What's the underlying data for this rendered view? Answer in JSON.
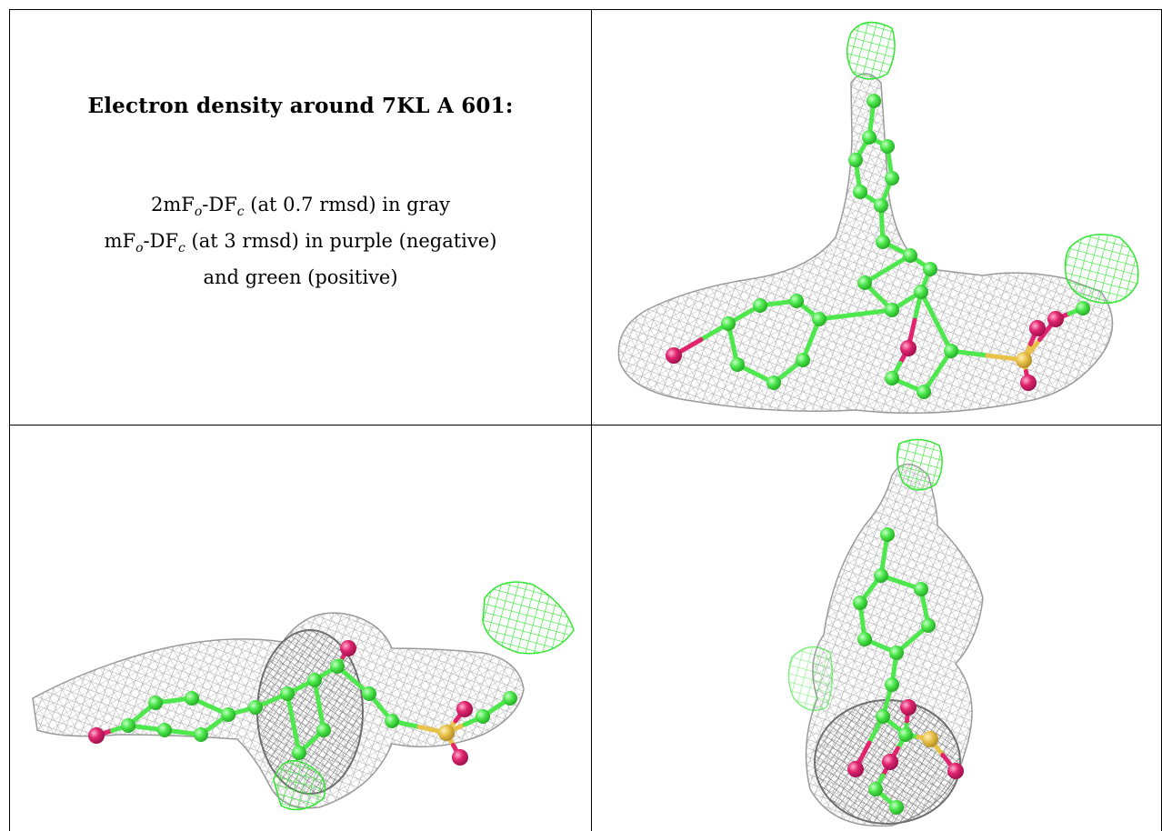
{
  "caption": {
    "title": "Electron density around 7KL A 601:",
    "legend_lines": [
      {
        "pre": "2mF",
        "sub1": "o",
        "mid": "-DF",
        "sub2": "c",
        "post": " (at 0.7 rmsd) in gray"
      },
      {
        "pre": "mF",
        "sub1": "o",
        "mid": "-DF",
        "sub2": "c",
        "post": " (at 3 rmsd) in purple (negative)"
      },
      {
        "text": "and green (positive)"
      }
    ]
  },
  "panels": [
    {
      "name": "top-view"
    },
    {
      "name": "side-view"
    },
    {
      "name": "end-view"
    }
  ],
  "colors": {
    "mesh_gray": "#a8a8a8",
    "mesh_green": "#33e633",
    "carbon": "#4ee84e",
    "oxygen": "#e0246e",
    "sulfur": "#e9c24a",
    "border": "#000000"
  }
}
